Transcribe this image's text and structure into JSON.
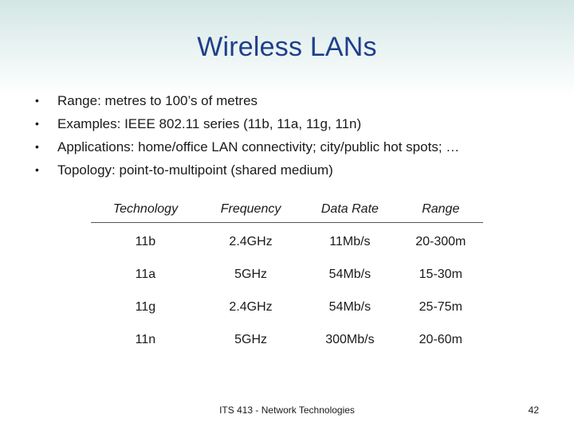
{
  "slide": {
    "title": "Wireless LANs",
    "bullets": [
      "Range: metres to 100’s of metres",
      "Examples: IEEE 802.11 series (11b, 11a, 11g, 11n)",
      "Applications: home/office LAN connectivity; city/public hot spots; …",
      "Topology: point-to-multipoint (shared medium)"
    ],
    "bullet_glyph": "•",
    "table": {
      "headers": [
        "Technology",
        "Frequency",
        "Data Rate",
        "Range"
      ],
      "rows": [
        [
          "11b",
          "2.4GHz",
          "11Mb/s",
          "20-300m"
        ],
        [
          "11a",
          "5GHz",
          "54Mb/s",
          "15-30m"
        ],
        [
          "11g",
          "2.4GHz",
          "54Mb/s",
          "25-75m"
        ],
        [
          "11n",
          "5GHz",
          "300Mb/s",
          "20-60m"
        ]
      ]
    },
    "footer": "ITS 413 - Network Technologies",
    "page_number": "42"
  },
  "colors": {
    "title": "#1f3f8a",
    "header_gradient_top": "#d3e6e4",
    "text": "#1a1a1a"
  }
}
